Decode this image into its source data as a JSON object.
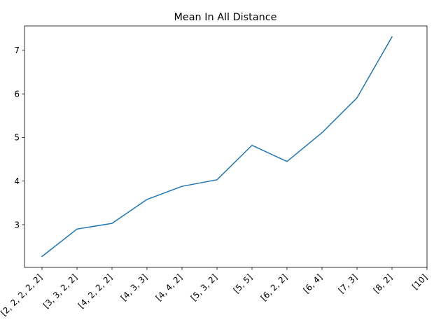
{
  "chart_data": {
    "type": "line",
    "title": "Mean In All Distance",
    "xlabel": "",
    "ylabel": "",
    "categories": [
      "[2, 2, 2, 2, 2]",
      "[3, 3, 2, 2]",
      "[4, 2, 2, 2]",
      "[4, 3, 3]",
      "[4, 4, 2]",
      "[5, 3, 2]",
      "[5, 5]",
      "[6, 2, 2]",
      "[6, 4]",
      "[7, 3]",
      "[8, 2]",
      "[10]"
    ],
    "series": [
      {
        "values": [
          2.27,
          2.9,
          3.03,
          3.58,
          3.88,
          4.03,
          4.82,
          4.45,
          5.11,
          5.91,
          7.31,
          null
        ],
        "color": "#1f77b4"
      }
    ],
    "yticks": [
      3,
      4,
      5,
      6,
      7
    ],
    "ylim": [
      2.02,
      7.56
    ],
    "grid": false,
    "legend": "none"
  }
}
